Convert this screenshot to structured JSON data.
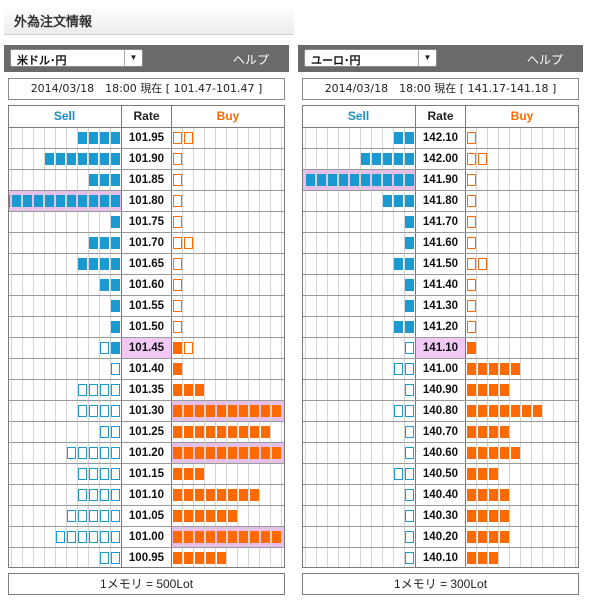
{
  "window_title": "外為注文情報",
  "panels": [
    {
      "pair": "米ドル･円",
      "help": "ヘルプ",
      "info": "2014/03/18　18:00 現在 [ 101.47-101.47 ]",
      "headers": {
        "sell": "Sell",
        "rate": "Rate",
        "buy": "Buy"
      },
      "footer": "1メモリ = 500Lot",
      "rows": [
        {
          "rate": "101.95",
          "sell": 4,
          "buy": 2,
          "buy_style": "empty"
        },
        {
          "rate": "101.90",
          "sell": 7,
          "buy": 1,
          "buy_style": "empty"
        },
        {
          "rate": "101.85",
          "sell": 3,
          "buy": 1,
          "buy_style": "empty"
        },
        {
          "rate": "101.80",
          "sell": 11,
          "buy": 1,
          "buy_style": "empty",
          "sell_highlight": true
        },
        {
          "rate": "101.75",
          "sell": 1,
          "buy": 1,
          "buy_style": "empty"
        },
        {
          "rate": "101.70",
          "sell": 3,
          "buy": 2,
          "buy_style": "empty"
        },
        {
          "rate": "101.65",
          "sell": 4,
          "buy": 1,
          "buy_style": "empty"
        },
        {
          "rate": "101.60",
          "sell": 2,
          "buy": 1,
          "buy_style": "empty"
        },
        {
          "rate": "101.55",
          "sell": 1,
          "buy": 1,
          "buy_style": "empty"
        },
        {
          "rate": "101.50",
          "sell": 1,
          "buy": 1,
          "buy_style": "empty"
        },
        {
          "rate": "101.45",
          "sell": 2,
          "sell_pattern": [
            "empty",
            "fill"
          ],
          "buy": 2,
          "buy_pattern": [
            "fill",
            "empty"
          ],
          "current": true
        },
        {
          "rate": "101.40",
          "sell": 1,
          "sell_style": "empty",
          "buy": 1,
          "buy_style": "fill"
        },
        {
          "rate": "101.35",
          "sell": 4,
          "sell_style": "empty",
          "buy": 3,
          "buy_style": "fill"
        },
        {
          "rate": "101.30",
          "sell": 4,
          "sell_style": "empty",
          "buy": 10,
          "buy_style": "fill",
          "buy_highlight": true
        },
        {
          "rate": "101.25",
          "sell": 2,
          "sell_style": "empty",
          "buy": 9,
          "buy_style": "fill"
        },
        {
          "rate": "101.20",
          "sell": 5,
          "sell_style": "empty",
          "buy": 10,
          "buy_style": "fill",
          "buy_highlight": true
        },
        {
          "rate": "101.15",
          "sell": 4,
          "sell_style": "empty",
          "buy": 3,
          "buy_style": "fill"
        },
        {
          "rate": "101.10",
          "sell": 4,
          "sell_style": "empty",
          "buy": 8,
          "buy_style": "fill"
        },
        {
          "rate": "101.05",
          "sell": 5,
          "sell_style": "empty",
          "buy": 6,
          "buy_style": "fill"
        },
        {
          "rate": "101.00",
          "sell": 6,
          "sell_style": "empty",
          "buy": 10,
          "buy_style": "fill",
          "buy_highlight": true
        },
        {
          "rate": "100.95",
          "sell": 2,
          "sell_style": "empty",
          "buy": 5,
          "buy_style": "fill"
        }
      ]
    },
    {
      "pair": "ユーロ･円",
      "help": "ヘルプ",
      "info": "2014/03/18　18:00 現在 [ 141.17-141.18 ]",
      "headers": {
        "sell": "Sell",
        "rate": "Rate",
        "buy": "Buy"
      },
      "footer": "1メモリ = 300Lot",
      "rows": [
        {
          "rate": "142.10",
          "sell": 2,
          "buy": 1,
          "buy_style": "empty"
        },
        {
          "rate": "142.00",
          "sell": 5,
          "buy": 2,
          "buy_style": "empty"
        },
        {
          "rate": "141.90",
          "sell": 10,
          "buy": 1,
          "buy_style": "empty",
          "sell_highlight": true
        },
        {
          "rate": "141.80",
          "sell": 3,
          "buy": 1,
          "buy_style": "empty"
        },
        {
          "rate": "141.70",
          "sell": 1,
          "buy": 1,
          "buy_style": "empty"
        },
        {
          "rate": "141.60",
          "sell": 1,
          "buy": 1,
          "buy_style": "empty"
        },
        {
          "rate": "141.50",
          "sell": 2,
          "buy": 2,
          "buy_style": "empty"
        },
        {
          "rate": "141.40",
          "sell": 1,
          "buy": 1,
          "buy_style": "empty"
        },
        {
          "rate": "141.30",
          "sell": 1,
          "buy": 1,
          "buy_style": "empty"
        },
        {
          "rate": "141.20",
          "sell": 2,
          "buy": 1,
          "buy_style": "empty"
        },
        {
          "rate": "141.10",
          "sell": 1,
          "sell_style": "empty",
          "buy": 1,
          "buy_style": "fill",
          "current": true
        },
        {
          "rate": "141.00",
          "sell": 2,
          "sell_style": "empty",
          "buy": 5,
          "buy_style": "fill"
        },
        {
          "rate": "140.90",
          "sell": 1,
          "sell_style": "empty",
          "buy": 4,
          "buy_style": "fill"
        },
        {
          "rate": "140.80",
          "sell": 2,
          "sell_style": "empty",
          "buy": 7,
          "buy_style": "fill"
        },
        {
          "rate": "140.70",
          "sell": 1,
          "sell_style": "empty",
          "buy": 4,
          "buy_style": "fill"
        },
        {
          "rate": "140.60",
          "sell": 1,
          "sell_style": "empty",
          "buy": 5,
          "buy_style": "fill"
        },
        {
          "rate": "140.50",
          "sell": 2,
          "sell_style": "empty",
          "buy": 3,
          "buy_style": "fill"
        },
        {
          "rate": "140.40",
          "sell": 1,
          "sell_style": "empty",
          "buy": 4,
          "buy_style": "fill"
        },
        {
          "rate": "140.30",
          "sell": 1,
          "sell_style": "empty",
          "buy": 4,
          "buy_style": "fill"
        },
        {
          "rate": "140.20",
          "sell": 1,
          "sell_style": "empty",
          "buy": 4,
          "buy_style": "fill"
        },
        {
          "rate": "140.10",
          "sell": 1,
          "sell_style": "empty",
          "buy": 3,
          "buy_style": "fill"
        }
      ]
    }
  ]
}
